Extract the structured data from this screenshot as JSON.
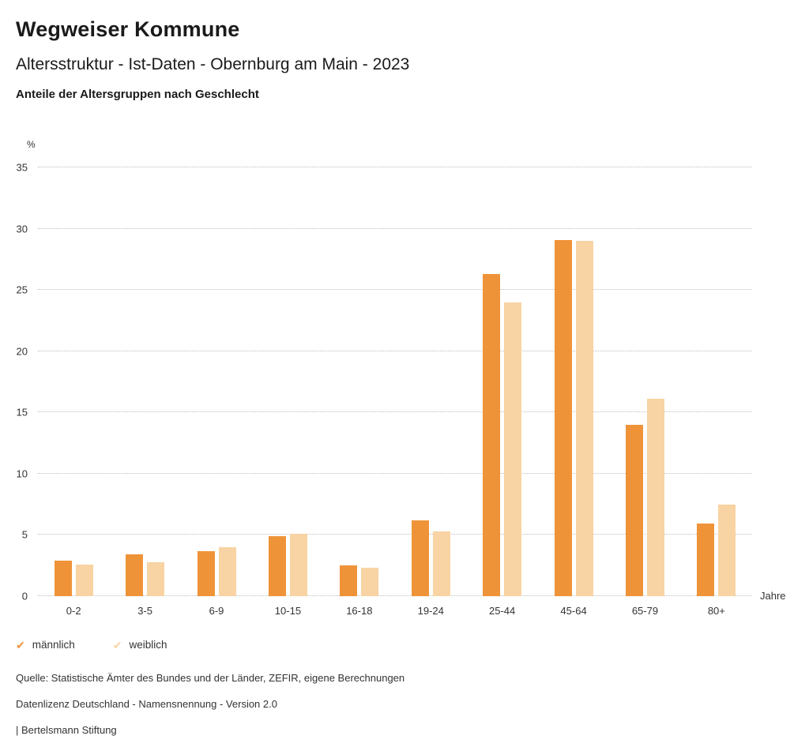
{
  "header": {
    "title": "Wegweiser Kommune",
    "subtitle": "Altersstruktur - Ist-Daten - Obernburg am Main - 2023",
    "caption": "Anteile der Altersgruppen nach Geschlecht"
  },
  "chart_data": {
    "type": "bar",
    "title": "Anteile der Altersgruppen nach Geschlecht",
    "unit": "%",
    "xlabel": "Jahre",
    "ylim": [
      0,
      35
    ],
    "yticks": [
      0,
      5,
      10,
      15,
      20,
      25,
      30,
      35
    ],
    "grid": "horizontal-dotted",
    "legend_position": "bottom-left",
    "categories": [
      "0-2",
      "3-5",
      "6-9",
      "10-15",
      "16-18",
      "19-24",
      "25-44",
      "45-64",
      "65-79",
      "80+"
    ],
    "series": [
      {
        "name": "männlich",
        "key": "maennlich",
        "color": "#ef9339",
        "values": [
          2.9,
          3.4,
          3.7,
          4.9,
          2.5,
          6.2,
          26.3,
          29.1,
          14.0,
          5.9
        ]
      },
      {
        "name": "weiblich",
        "key": "weiblich",
        "color": "#f8d3a3",
        "values": [
          2.6,
          2.8,
          4.0,
          5.1,
          2.3,
          5.3,
          24.0,
          29.0,
          16.1,
          7.5
        ]
      }
    ]
  },
  "legend": {
    "check_glyph": "✔"
  },
  "footer": {
    "line1": "Quelle: Statistische Ämter des Bundes und der Länder, ZEFIR, eigene Berechnungen",
    "line2": "Datenlizenz Deutschland - Namensnennung - Version 2.0",
    "line3": "| Bertelsmann Stiftung"
  }
}
